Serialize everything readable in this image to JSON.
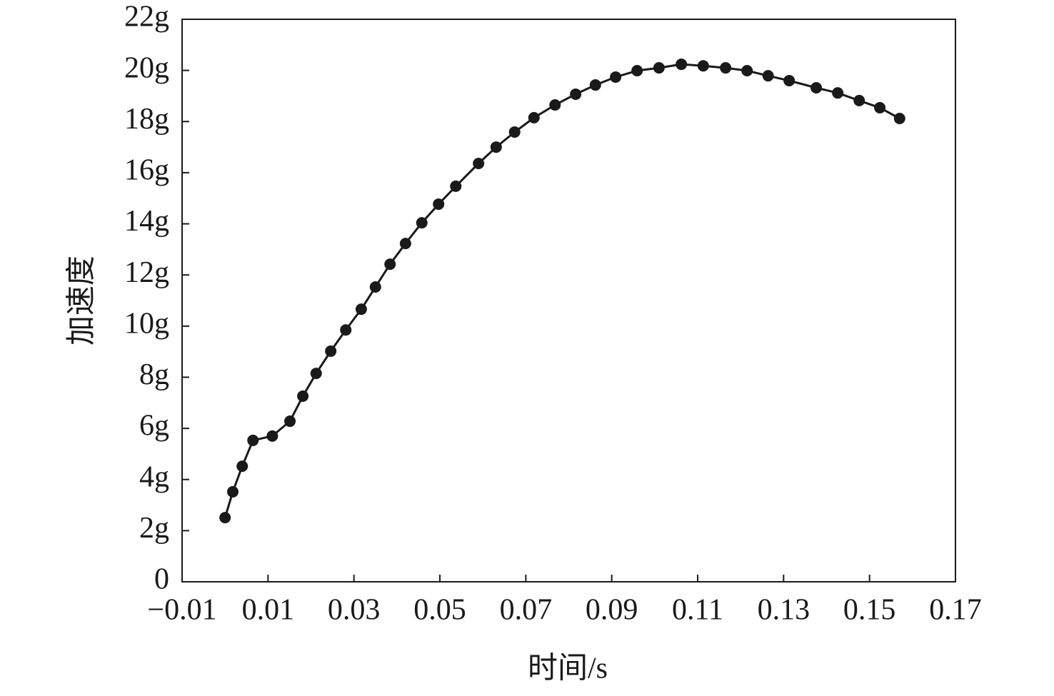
{
  "chart_data": {
    "type": "line",
    "xlabel": "时间/s",
    "ylabel": "加速度",
    "xlim": [
      -0.01,
      0.17
    ],
    "xticks": [
      {
        "value": -0.01,
        "label": "−0.01"
      },
      0.01,
      0.03,
      0.05,
      0.07,
      0.09,
      0.11,
      0.13,
      0.15,
      0.17
    ],
    "ylim": [
      0,
      22
    ],
    "yticks": [
      0,
      {
        "value": 2,
        "label": "2g"
      },
      {
        "value": 4,
        "label": "4g"
      },
      {
        "value": 6,
        "label": "6g"
      },
      {
        "value": 8,
        "label": "8g"
      },
      {
        "value": 10,
        "label": "10g"
      },
      {
        "value": 12,
        "label": "12g"
      },
      {
        "value": 14,
        "label": "14g"
      },
      {
        "value": 16,
        "label": "16g"
      },
      {
        "value": 18,
        "label": "18g"
      },
      {
        "value": 20,
        "label": "20g"
      },
      {
        "value": 22,
        "label": "22g"
      }
    ],
    "grid": false,
    "series": [
      {
        "color": "#1a1a1a",
        "x": [
          0.0,
          0.0018,
          0.004,
          0.0065,
          0.011,
          0.0151,
          0.0181,
          0.0212,
          0.0246,
          0.0281,
          0.0317,
          0.035,
          0.0384,
          0.042,
          0.0458,
          0.0497,
          0.0537,
          0.059,
          0.0631,
          0.0674,
          0.0719,
          0.0768,
          0.0816,
          0.0862,
          0.0909,
          0.0959,
          0.101,
          0.1062,
          0.1113,
          0.1165,
          0.1215,
          0.1264,
          0.1313,
          0.1376,
          0.1426,
          0.1476,
          0.1524,
          0.157
        ],
        "values": [
          2.51,
          3.52,
          4.52,
          5.53,
          5.7,
          6.28,
          7.26,
          8.15,
          9.02,
          9.85,
          10.66,
          11.53,
          12.42,
          13.23,
          14.04,
          14.77,
          15.47,
          16.36,
          17.0,
          17.59,
          18.15,
          18.65,
          19.07,
          19.43,
          19.74,
          19.99,
          20.1,
          20.24,
          20.18,
          20.1,
          19.99,
          19.79,
          19.6,
          19.32,
          19.12,
          18.82,
          18.54,
          18.12
        ]
      }
    ]
  }
}
